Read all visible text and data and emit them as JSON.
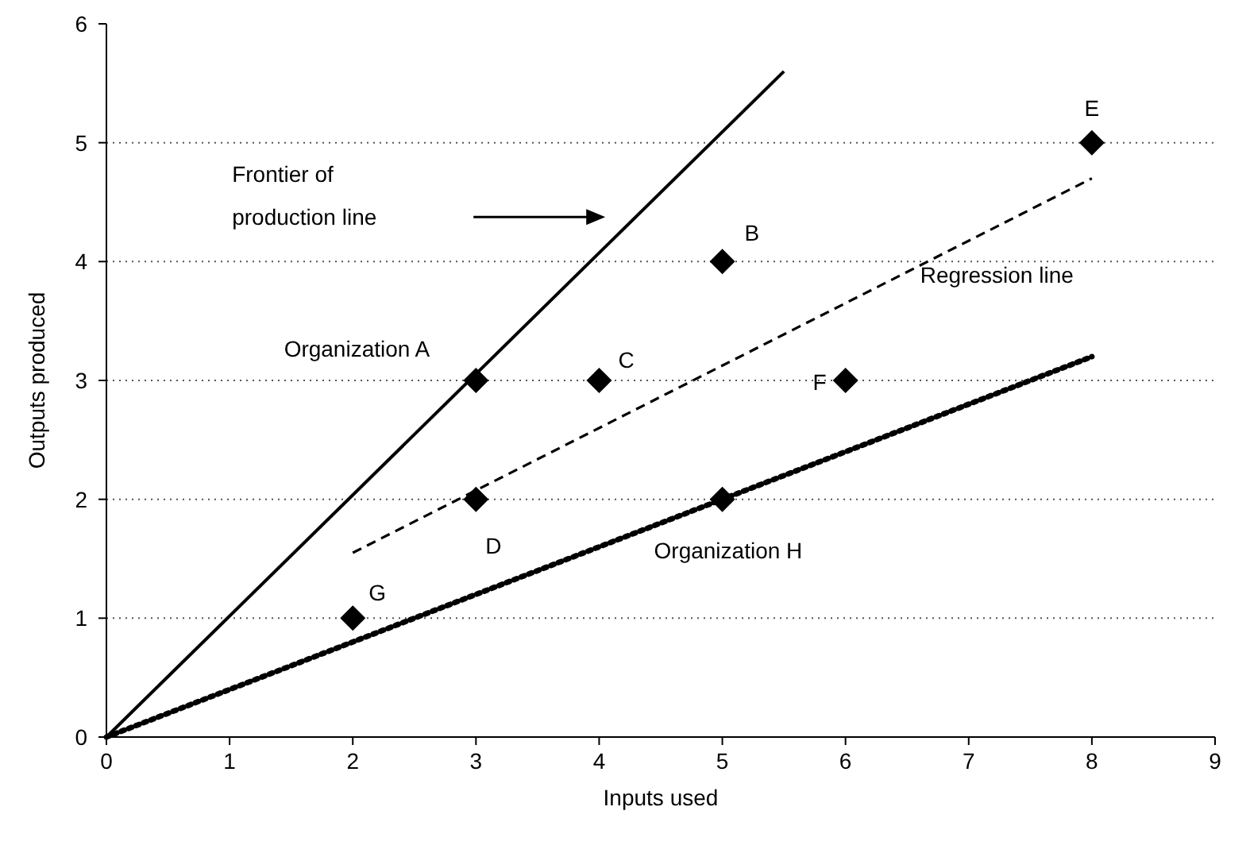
{
  "chart_data": {
    "type": "scatter",
    "xlabel": "Inputs used",
    "ylabel": "Outputs produced",
    "xlim": [
      0,
      9
    ],
    "ylim": [
      0,
      6
    ],
    "xticks": [
      0,
      1,
      2,
      3,
      4,
      5,
      6,
      7,
      8,
      9
    ],
    "yticks": [
      0,
      1,
      2,
      3,
      4,
      5,
      6
    ],
    "grid": "y",
    "series": [
      {
        "type": "line",
        "color": "#000000",
        "line_style": "solid",
        "x": [
          0,
          5.5
        ],
        "values": [
          0,
          5.6
        ]
      },
      {
        "type": "line",
        "color": "#000000",
        "line_style": "dashed",
        "x": [
          2,
          8
        ],
        "values": [
          1.55,
          4.7
        ]
      },
      {
        "type": "line",
        "color": "#000000",
        "line_style": "dotted",
        "x": [
          0,
          8
        ],
        "values": [
          0,
          3.2
        ]
      },
      {
        "color": "#000000",
        "marker": "diamond",
        "x": [
          3,
          5,
          4,
          3,
          8,
          6,
          2,
          5
        ],
        "values": [
          3,
          4,
          3,
          2,
          5,
          3,
          1,
          2
        ]
      }
    ],
    "annotations": [
      {
        "text": "Organization A",
        "x": 3,
        "y": 3
      },
      {
        "text": "B",
        "x": 5,
        "y": 4
      },
      {
        "text": "C",
        "x": 4,
        "y": 3
      },
      {
        "text": "D",
        "x": 3,
        "y": 2
      },
      {
        "text": "E",
        "x": 8,
        "y": 5
      },
      {
        "text": "F",
        "x": 6,
        "y": 3
      },
      {
        "text": "G",
        "x": 2,
        "y": 1
      },
      {
        "text": "Organization H",
        "x": 5,
        "y": 2
      },
      {
        "text": "Regression line",
        "x": 7.1,
        "y": 4.22
      },
      "Frontier of production line"
    ]
  }
}
